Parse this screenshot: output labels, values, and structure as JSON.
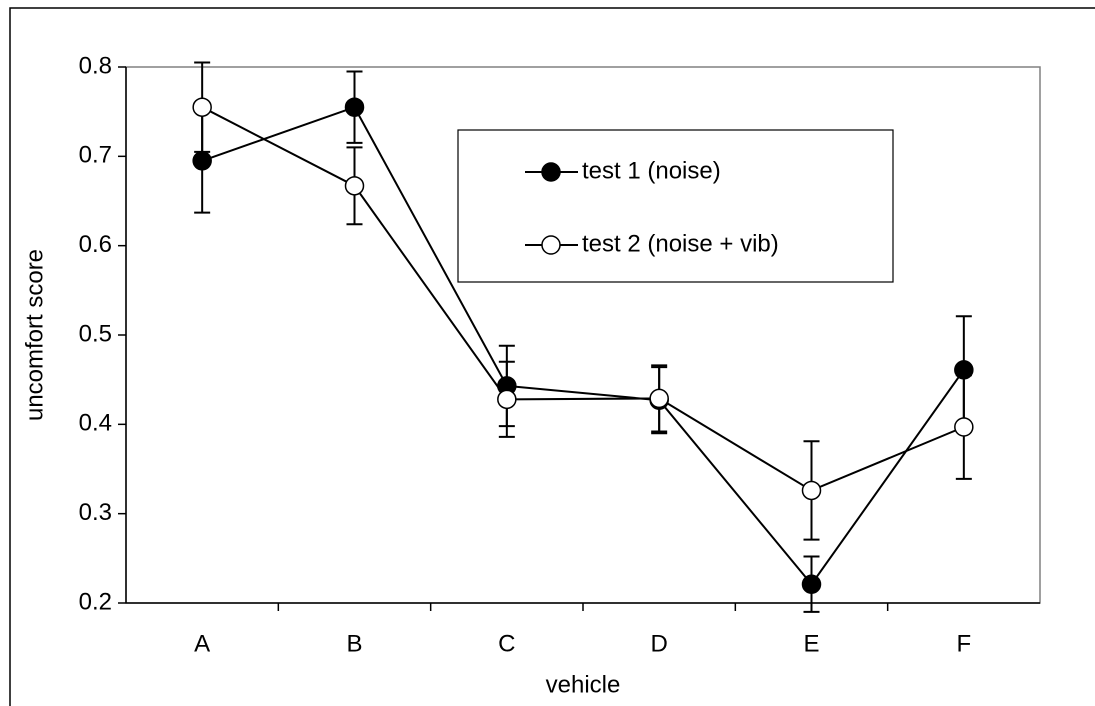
{
  "chart_data": {
    "type": "line",
    "x_label": "vehicle",
    "y_label": "uncomfort score",
    "categories": [
      "A",
      "B",
      "C",
      "D",
      "E",
      "F"
    ],
    "ylim": [
      0.2,
      0.8
    ],
    "yticks": [
      0.2,
      0.3,
      0.4,
      0.5,
      0.6,
      0.7,
      0.8
    ],
    "legend_position": "upper right",
    "series": [
      {
        "name": "test 1 (noise)",
        "color": "#000000",
        "marker": "filled",
        "values": [
          0.695,
          0.755,
          0.443,
          0.427,
          0.221,
          0.461
        ],
        "errors": [
          0.058,
          0.04,
          0.045,
          0.037,
          0.031,
          0.06
        ]
      },
      {
        "name": "test 2 (noise + vib)",
        "color": "#000000",
        "marker": "open",
        "values": [
          0.755,
          0.667,
          0.428,
          0.429,
          0.326,
          0.397
        ],
        "errors": [
          0.05,
          0.043,
          0.042,
          0.037,
          0.055,
          0.058
        ]
      }
    ]
  }
}
